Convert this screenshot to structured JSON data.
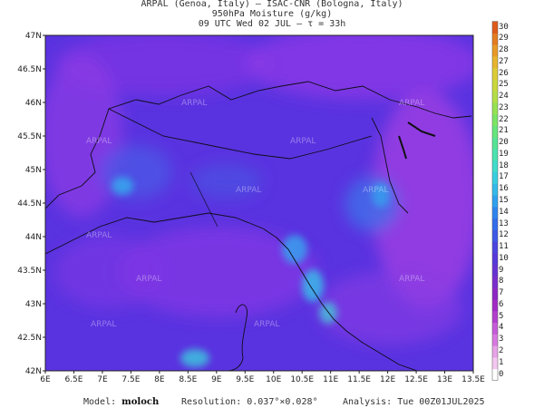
{
  "header": {
    "line1": "ARPAL (Genoa, Italy)  –  ISAC-CNR (Bologna, Italy)",
    "line2": "950hPa Moisture (g/kg)",
    "line3": "09 UTC Wed 02 JUL  –  τ = 33h"
  },
  "axes": {
    "lat_labels": [
      "47N",
      "46.5N",
      "46N",
      "45.5N",
      "45N",
      "44.5N",
      "44N",
      "43.5N",
      "43N",
      "42.5N",
      "42N"
    ],
    "lon_labels": [
      "6E",
      "6.5E",
      "7E",
      "7.5E",
      "8E",
      "8.5E",
      "9E",
      "9.5E",
      "10E",
      "10.5E",
      "11E",
      "11.5E",
      "12E",
      "12.5E",
      "13E",
      "13.5E"
    ],
    "lat_range": [
      42,
      47
    ],
    "lon_range": [
      6,
      13.5
    ]
  },
  "colorbar": {
    "labels": [
      "0",
      "1",
      "2",
      "3",
      "4",
      "5",
      "6",
      "7",
      "8",
      "9",
      "10",
      "11",
      "12",
      "13",
      "14",
      "15",
      "16",
      "17",
      "18",
      "19",
      "20",
      "21",
      "22",
      "23",
      "24",
      "25",
      "26",
      "27",
      "28",
      "29",
      "30"
    ],
    "colors": [
      "#ffffff",
      "#f4c6f0",
      "#e7a2e7",
      "#d779e0",
      "#c55ad8",
      "#b13fcd",
      "#a22bc6",
      "#8d27c4",
      "#7a2dcd",
      "#6732d4",
      "#5638db",
      "#4b45e0",
      "#3f58e6",
      "#336ceb",
      "#2f84ee",
      "#30a1ef",
      "#33baea",
      "#37cfe0",
      "#3edccb",
      "#4ae3b0",
      "#55e595",
      "#65e67c",
      "#7be564",
      "#96e352",
      "#b3df45",
      "#cad83c",
      "#ddcc34",
      "#e7b52d",
      "#e89a26",
      "#e57d20",
      "#df5a1b"
    ]
  },
  "footer": {
    "model_label": "Model:",
    "model_value": "moloch",
    "resolution": "Resolution: 0.037°×0.028°",
    "analysis": "Analysis: Tue 00Z01JUL2025"
  },
  "watermark": "ARPAL",
  "colors": {
    "field_base": "#5a33e0",
    "land_tint": "#8a3ae6",
    "sea_high": "#9b39e2",
    "coastline": "#111111"
  }
}
